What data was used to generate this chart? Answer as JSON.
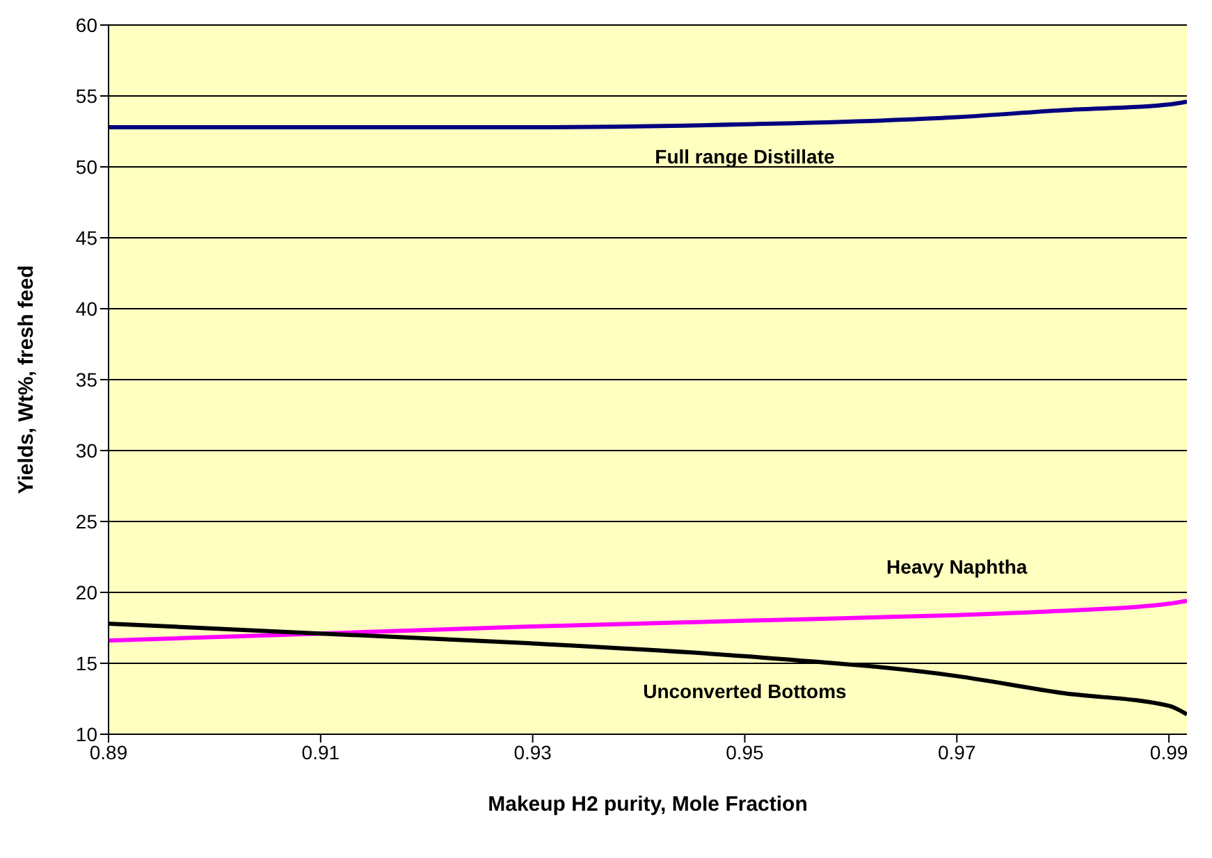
{
  "chart_data": {
    "type": "line",
    "xlabel": "Makeup H2 purity, Mole Fraction",
    "ylabel": "Yields, Wt%, fresh feed",
    "x": [
      0.89,
      0.91,
      0.93,
      0.95,
      0.97,
      0.98,
      0.99,
      0.9917
    ],
    "series": [
      {
        "name": "Full range Distillate",
        "color": "#000080",
        "values": [
          52.8,
          52.8,
          52.8,
          53.0,
          53.5,
          54.0,
          54.4,
          54.6
        ]
      },
      {
        "name": "Heavy Naphtha",
        "color": "#ff00ff",
        "values": [
          16.6,
          17.1,
          17.6,
          18.0,
          18.4,
          18.7,
          19.2,
          19.4
        ]
      },
      {
        "name": "Unconverted Bottoms",
        "color": "#000000",
        "values": [
          17.8,
          17.1,
          16.4,
          15.5,
          14.1,
          12.9,
          12.0,
          11.4
        ]
      }
    ],
    "xlim": [
      0.89,
      0.9917
    ],
    "xticks": [
      0.89,
      0.91,
      0.93,
      0.95,
      0.97,
      0.99
    ],
    "ylim": [
      10,
      60
    ],
    "yticks": [
      10,
      15,
      20,
      25,
      30,
      35,
      40,
      45,
      50,
      55,
      60
    ],
    "grid": "y",
    "legend": false,
    "marker": "none",
    "line_style": "solid"
  }
}
